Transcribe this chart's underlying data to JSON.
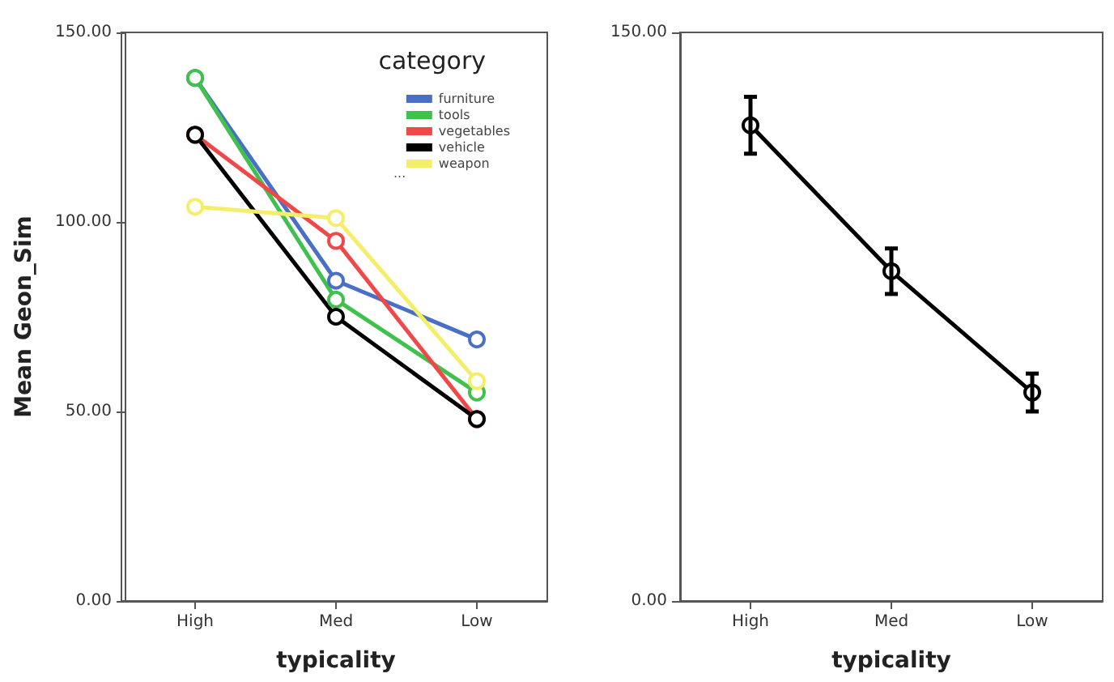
{
  "chart_data": [
    {
      "type": "line",
      "xlabel": "typicality",
      "ylabel": "Mean Geon_Sim",
      "legend_title": "category",
      "categories": [
        "High",
        "Med",
        "Low"
      ],
      "ylim": [
        0,
        150
      ],
      "yticks": [
        {
          "value": 0,
          "label": "0.00"
        },
        {
          "value": 50,
          "label": "50.00"
        },
        {
          "value": 100,
          "label": "100.00"
        },
        {
          "value": 150,
          "label": "150.00"
        }
      ],
      "grid": false,
      "legend": "top right",
      "marker": "circle",
      "line_style": "solid",
      "series": [
        {
          "name": "furniture",
          "color": "#4a6fc7",
          "values": [
            138,
            84.5,
            69
          ]
        },
        {
          "name": "tools",
          "color": "#3fc14e",
          "values": [
            138,
            79.5,
            55
          ]
        },
        {
          "name": "vegetables",
          "color": "#f04848",
          "values": [
            123,
            95,
            48
          ]
        },
        {
          "name": "vehicle",
          "color": "#000000",
          "values": [
            123,
            75,
            48
          ]
        },
        {
          "name": "weapon",
          "color": "#f5ee6a",
          "values": [
            104,
            101,
            58
          ]
        }
      ],
      "annotations": [
        "..."
      ]
    },
    {
      "type": "line",
      "xlabel": "typicality",
      "categories": [
        "High",
        "Med",
        "Low"
      ],
      "ylim": [
        0,
        150
      ],
      "yticks": [
        {
          "value": 0,
          "label": "0.00"
        },
        {
          "value": 150,
          "label": "150.00"
        }
      ],
      "grid": false,
      "marker": "circle",
      "line_style": "solid",
      "color": "#000000",
      "values": [
        125.5,
        87,
        55
      ],
      "errors": [
        [
          118,
          133
        ],
        [
          81,
          93
        ],
        [
          50,
          60
        ]
      ]
    }
  ]
}
